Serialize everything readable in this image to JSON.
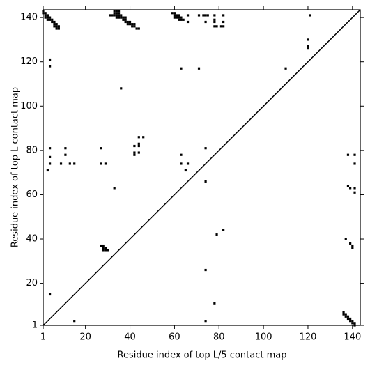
{
  "chart_data": {
    "type": "scatter",
    "xlabel": "Residue index of top L/5 contact map",
    "ylabel": "Residue index of top L contact map",
    "xlim": [
      1,
      143.5
    ],
    "ylim": [
      1,
      143.5
    ],
    "xticks": [
      1,
      20,
      40,
      60,
      80,
      100,
      120,
      140
    ],
    "yticks": [
      1,
      20,
      40,
      60,
      80,
      100,
      120,
      140
    ],
    "diagonal": true,
    "marker": "square",
    "series": [
      {
        "color": "#000000",
        "x": [
          1,
          1,
          2,
          2,
          3,
          3,
          2,
          4,
          4,
          3,
          5,
          5,
          6,
          6,
          7,
          7,
          7,
          8,
          8,
          6,
          4,
          4,
          31,
          32,
          33,
          33,
          34,
          34,
          34,
          35,
          35,
          35,
          36,
          36,
          37,
          37,
          38,
          38,
          38,
          39,
          39,
          40,
          40,
          41,
          41,
          42,
          42,
          43,
          44,
          33,
          34,
          35,
          36,
          59,
          60,
          60,
          61,
          61,
          62,
          62,
          62,
          63,
          63,
          64,
          60,
          66,
          66,
          71,
          73,
          74,
          74,
          75,
          78,
          78,
          78,
          78,
          79,
          82,
          82,
          82,
          81,
          63,
          71,
          110,
          120,
          120,
          120,
          121,
          4,
          4,
          4,
          3,
          9,
          11,
          11,
          13,
          15,
          27,
          27,
          29,
          33,
          42,
          42,
          42,
          44,
          46,
          44,
          44,
          44,
          63,
          63,
          65,
          66,
          74,
          74,
          138,
          141,
          141,
          138,
          139,
          141,
          141,
          27,
          28,
          28,
          29,
          29,
          30,
          28,
          79,
          82,
          74,
          78,
          74,
          4,
          15,
          137,
          139,
          140,
          140,
          136,
          136,
          137,
          137,
          138,
          138,
          139,
          139,
          140,
          140,
          141,
          141
        ],
        "y": [
          143,
          142,
          142,
          141,
          141,
          140,
          140,
          140,
          139,
          139,
          139,
          138,
          138,
          137,
          137,
          136,
          135,
          136,
          135,
          136,
          121,
          118,
          141,
          141,
          142,
          141,
          142,
          141,
          140,
          142,
          141,
          140,
          141,
          140,
          140,
          139,
          140,
          139,
          138,
          138,
          137,
          138,
          137,
          137,
          136,
          137,
          136,
          135,
          135,
          143,
          143,
          143,
          108,
          142,
          142,
          141,
          141,
          140,
          141,
          140,
          139,
          140,
          139,
          139,
          140,
          138,
          141,
          141,
          141,
          141,
          138,
          141,
          141,
          139,
          138,
          136,
          136,
          141,
          138,
          136,
          136,
          117,
          117,
          117,
          130,
          127,
          126,
          141,
          81,
          77,
          74,
          71,
          74,
          81,
          78,
          74,
          74,
          81,
          74,
          74,
          63,
          82,
          79,
          78,
          86,
          86,
          83,
          82,
          79,
          78,
          74,
          71,
          74,
          81,
          66,
          78,
          78,
          74,
          64,
          63,
          63,
          61,
          37,
          37,
          36,
          36,
          35,
          35,
          35,
          42,
          44,
          26,
          11,
          3,
          15,
          3,
          40,
          38,
          37,
          36,
          7,
          6,
          6,
          5,
          5,
          4,
          4,
          3,
          3,
          2,
          2,
          1
        ]
      }
    ]
  }
}
